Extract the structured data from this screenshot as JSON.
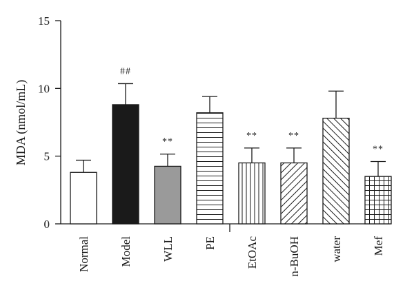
{
  "chart_data": {
    "type": "bar",
    "ylabel": "MDA (nmol/mL)",
    "ylim": [
      0,
      15
    ],
    "yticks": [
      "0",
      "5",
      "10",
      "15"
    ],
    "grid": false,
    "categories": [
      "Normal",
      "Model",
      "WLL",
      "PE",
      "EtOAc",
      "n-BuOH",
      "water",
      "Mef"
    ],
    "values": [
      3.8,
      8.8,
      4.25,
      8.2,
      4.5,
      4.5,
      7.8,
      3.5
    ],
    "errors": [
      0.9,
      1.55,
      0.9,
      1.2,
      1.1,
      1.1,
      2.0,
      1.1
    ],
    "annotations": [
      "",
      "##",
      "**",
      "",
      "**",
      "**",
      "",
      "**"
    ],
    "fills": [
      "empty",
      "black",
      "gray",
      "horizontal-lines",
      "vertical-lines",
      "diagonal-lines",
      "diagonal-lines-reverse",
      "grid"
    ],
    "colors": {
      "axis": "#1a1a1a",
      "bar_stroke": "#1a1a1a",
      "black_fill": "#1a1a1a",
      "gray_fill": "#9a9a9a"
    }
  }
}
